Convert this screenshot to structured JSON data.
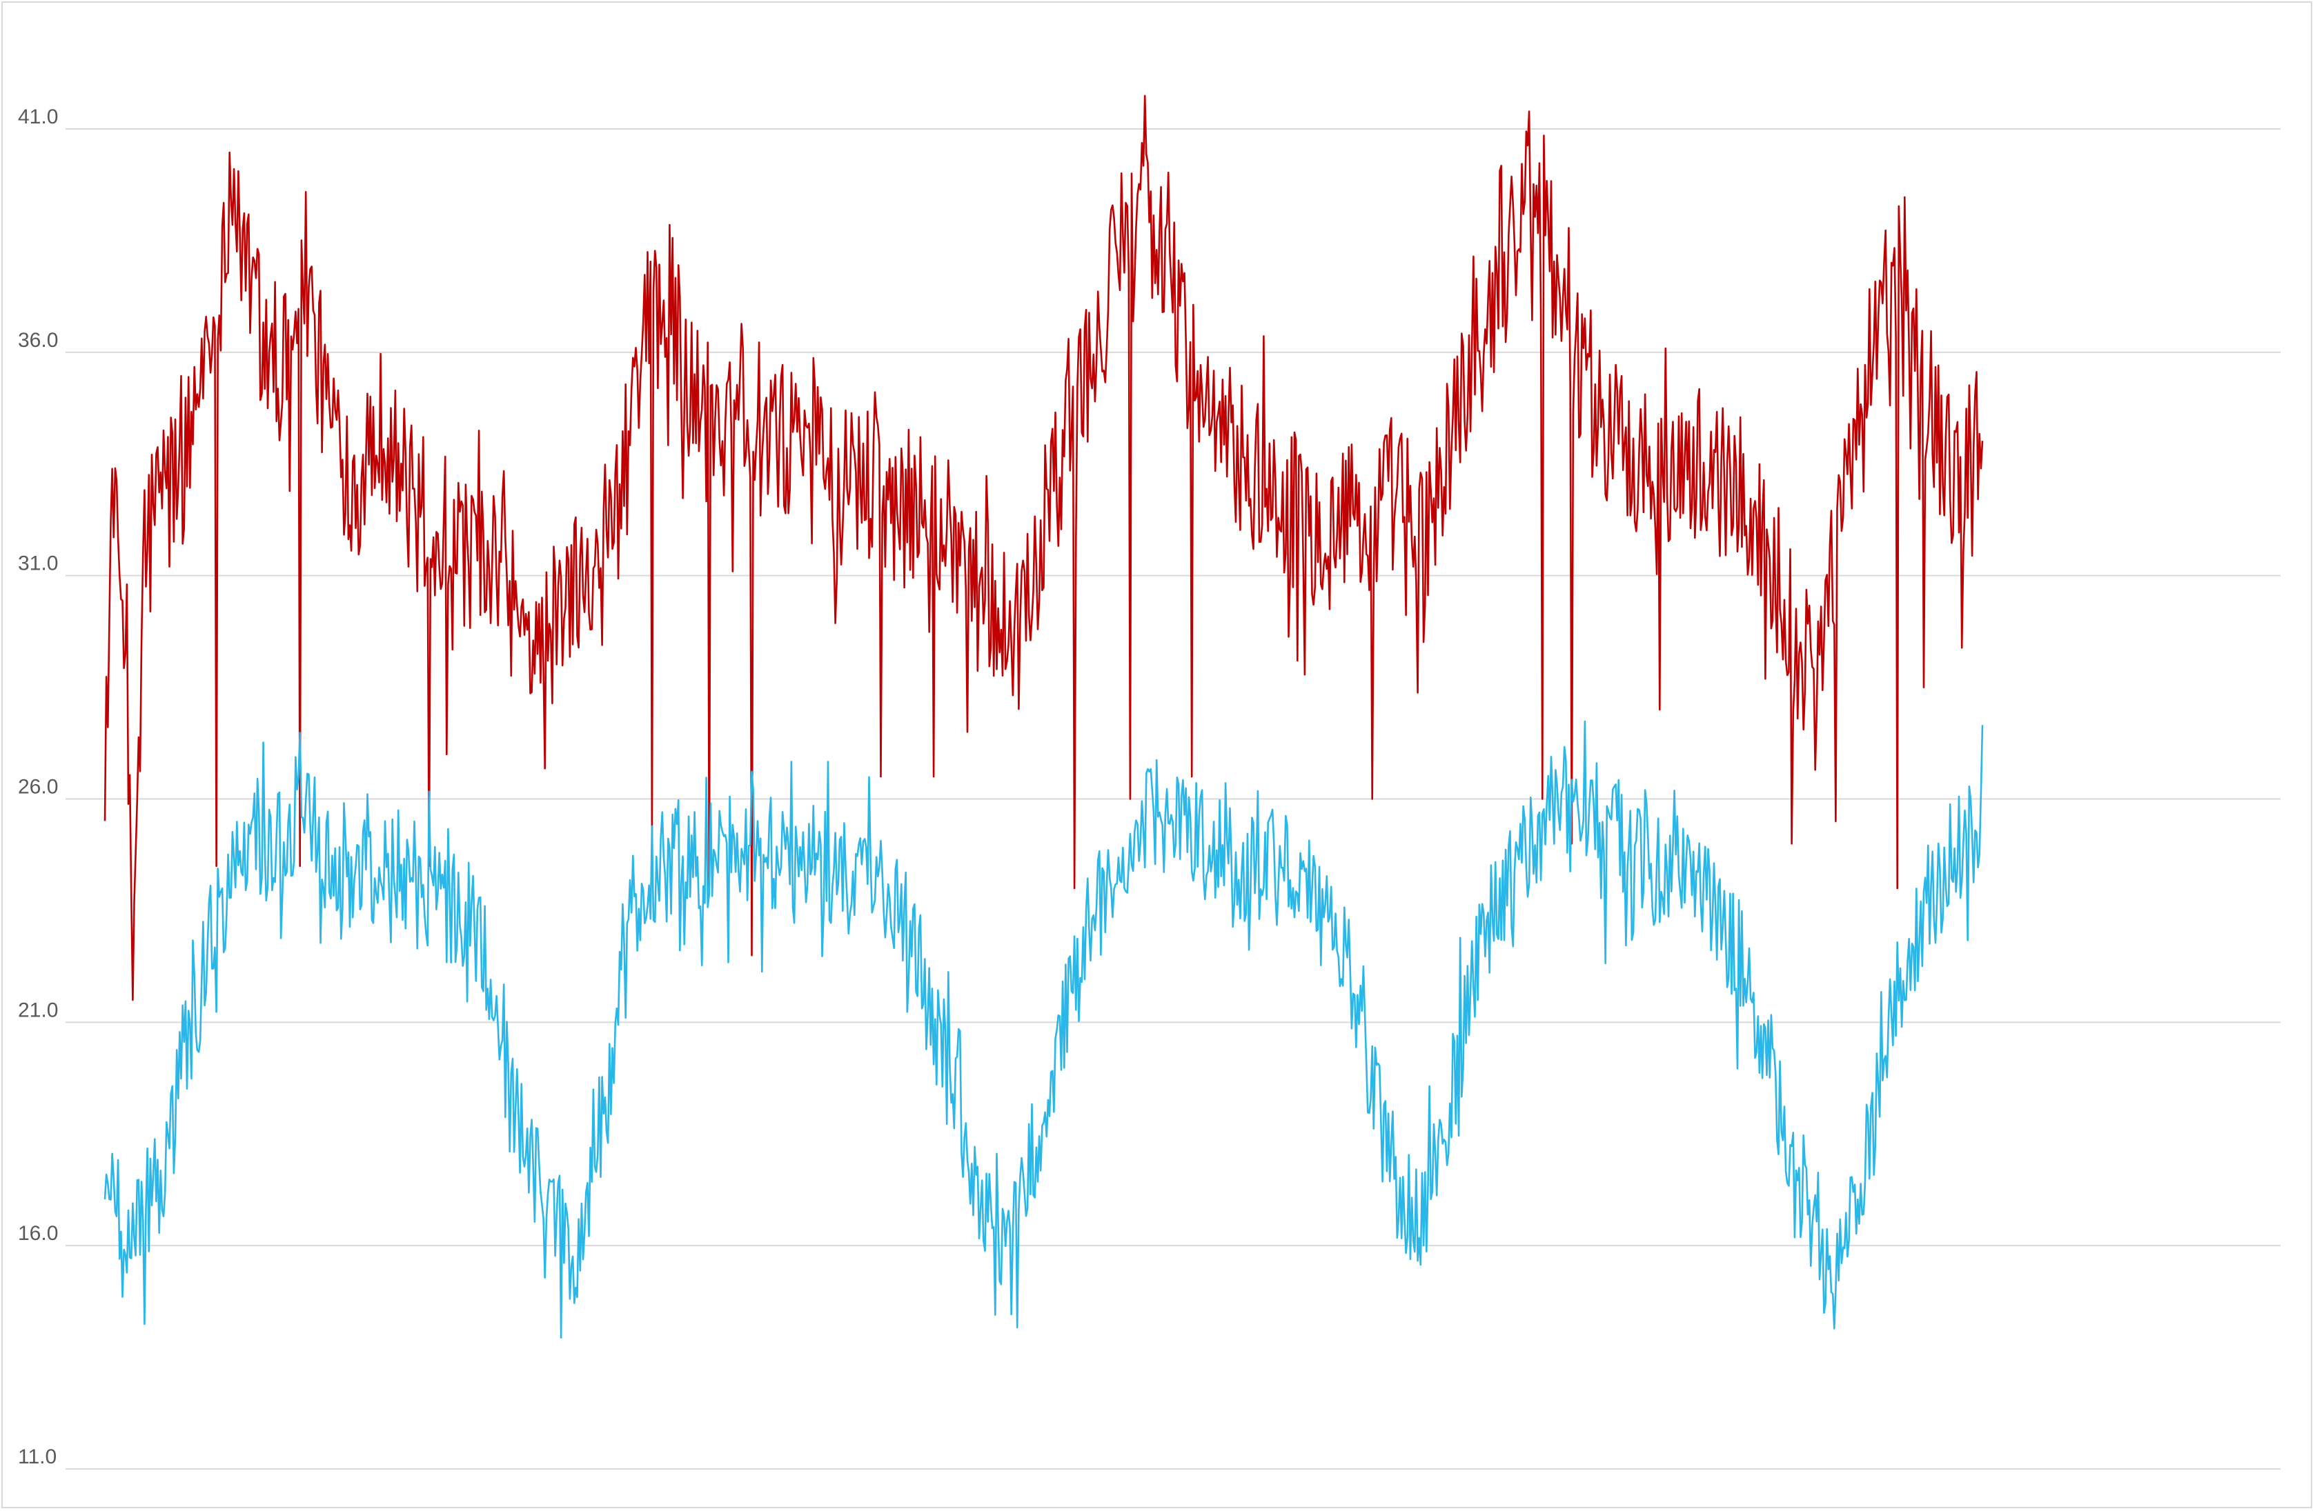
{
  "chart_data": {
    "type": "line",
    "title": "",
    "xlabel": "",
    "ylabel": "",
    "ylim": [
      11.0,
      41.0
    ],
    "yticks": [
      "41.0",
      "36.0",
      "31.0",
      "26.0",
      "21.0",
      "16.0",
      "11.0"
    ],
    "grid": "horizontal",
    "legend": "none",
    "series": [
      {
        "color": "#c00000",
        "anchors": [
          [
            0,
            27.5
          ],
          [
            12,
            32.0
          ],
          [
            28,
            30.0
          ],
          [
            38,
            21.5
          ],
          [
            55,
            32.0
          ],
          [
            80,
            33.0
          ],
          [
            110,
            33.5
          ],
          [
            140,
            36.5
          ],
          [
            170,
            39.5
          ],
          [
            200,
            37.0
          ],
          [
            240,
            35.5
          ],
          [
            270,
            38.0
          ],
          [
            300,
            35.0
          ],
          [
            340,
            33.0
          ],
          [
            380,
            34.5
          ],
          [
            420,
            32.5
          ],
          [
            460,
            32.0
          ],
          [
            500,
            31.5
          ],
          [
            540,
            31.0
          ],
          [
            580,
            29.5
          ],
          [
            620,
            30.0
          ],
          [
            660,
            31.5
          ],
          [
            700,
            32.5
          ],
          [
            740,
            36.5
          ],
          [
            770,
            37.5
          ],
          [
            800,
            35.0
          ],
          [
            840,
            34.5
          ],
          [
            880,
            35.0
          ],
          [
            920,
            34.0
          ],
          [
            960,
            34.5
          ],
          [
            1000,
            33.0
          ],
          [
            1040,
            33.0
          ],
          [
            1080,
            32.5
          ],
          [
            1120,
            32.5
          ],
          [
            1160,
            32.0
          ],
          [
            1200,
            30.5
          ],
          [
            1240,
            30.0
          ],
          [
            1280,
            32.0
          ],
          [
            1320,
            34.5
          ],
          [
            1360,
            36.5
          ],
          [
            1400,
            39.5
          ],
          [
            1440,
            38.5
          ],
          [
            1480,
            35.5
          ],
          [
            1520,
            34.5
          ],
          [
            1560,
            33.5
          ],
          [
            1600,
            33.0
          ],
          [
            1640,
            32.0
          ],
          [
            1680,
            32.5
          ],
          [
            1720,
            32.0
          ],
          [
            1760,
            33.0
          ],
          [
            1800,
            31.5
          ],
          [
            1840,
            34.5
          ],
          [
            1880,
            36.5
          ],
          [
            1920,
            38.5
          ],
          [
            1950,
            40.5
          ],
          [
            1980,
            37.5
          ],
          [
            2020,
            35.0
          ],
          [
            2060,
            34.0
          ],
          [
            2100,
            33.5
          ],
          [
            2140,
            33.5
          ],
          [
            2180,
            33.5
          ],
          [
            2220,
            33.0
          ],
          [
            2260,
            32.0
          ],
          [
            2300,
            30.0
          ],
          [
            2320,
            29.0
          ],
          [
            2350,
            30.5
          ],
          [
            2380,
            34.0
          ],
          [
            2420,
            37.0
          ],
          [
            2460,
            38.0
          ],
          [
            2480,
            35.5
          ],
          [
            2520,
            33.0
          ],
          [
            2560,
            34.0
          ]
        ]
      },
      {
        "color": "#29b6e8",
        "anchors": [
          [
            0,
            17.5
          ],
          [
            15,
            17.0
          ],
          [
            30,
            15.5
          ],
          [
            50,
            17.0
          ],
          [
            80,
            17.5
          ],
          [
            110,
            20.5
          ],
          [
            140,
            22.5
          ],
          [
            170,
            24.0
          ],
          [
            200,
            25.0
          ],
          [
            240,
            25.0
          ],
          [
            270,
            26.0
          ],
          [
            300,
            25.0
          ],
          [
            340,
            24.5
          ],
          [
            380,
            24.5
          ],
          [
            420,
            24.5
          ],
          [
            460,
            23.5
          ],
          [
            500,
            23.5
          ],
          [
            530,
            22.0
          ],
          [
            550,
            19.5
          ],
          [
            580,
            18.0
          ],
          [
            610,
            16.5
          ],
          [
            640,
            15.5
          ],
          [
            660,
            17.0
          ],
          [
            690,
            20.0
          ],
          [
            720,
            23.5
          ],
          [
            760,
            24.5
          ],
          [
            800,
            24.5
          ],
          [
            840,
            24.5
          ],
          [
            880,
            25.0
          ],
          [
            920,
            24.5
          ],
          [
            960,
            24.5
          ],
          [
            1000,
            24.5
          ],
          [
            1040,
            24.0
          ],
          [
            1080,
            23.5
          ],
          [
            1110,
            22.5
          ],
          [
            1140,
            20.5
          ],
          [
            1170,
            18.5
          ],
          [
            1200,
            16.5
          ],
          [
            1230,
            16.0
          ],
          [
            1250,
            17.0
          ],
          [
            1280,
            19.0
          ],
          [
            1310,
            21.0
          ],
          [
            1340,
            23.0
          ],
          [
            1380,
            24.5
          ],
          [
            1420,
            25.5
          ],
          [
            1460,
            25.5
          ],
          [
            1500,
            25.0
          ],
          [
            1540,
            24.5
          ],
          [
            1580,
            24.5
          ],
          [
            1620,
            24.5
          ],
          [
            1660,
            23.5
          ],
          [
            1700,
            22.0
          ],
          [
            1730,
            19.5
          ],
          [
            1760,
            17.5
          ],
          [
            1790,
            16.5
          ],
          [
            1820,
            18.0
          ],
          [
            1850,
            20.5
          ],
          [
            1880,
            23.0
          ],
          [
            1920,
            24.5
          ],
          [
            1960,
            25.5
          ],
          [
            2000,
            26.0
          ],
          [
            2040,
            25.5
          ],
          [
            2080,
            25.0
          ],
          [
            2120,
            24.5
          ],
          [
            2160,
            24.5
          ],
          [
            2200,
            23.5
          ],
          [
            2240,
            22.0
          ],
          [
            2270,
            20.0
          ],
          [
            2300,
            18.0
          ],
          [
            2330,
            16.0
          ],
          [
            2360,
            15.0
          ],
          [
            2390,
            17.0
          ],
          [
            2420,
            19.5
          ],
          [
            2450,
            22.0
          ],
          [
            2480,
            23.5
          ],
          [
            2510,
            24.5
          ],
          [
            2540,
            25.0
          ],
          [
            2560,
            26.0
          ]
        ]
      }
    ],
    "point_count": 2561,
    "noise": [
      1.8,
      1.3
    ],
    "spikes": [
      [
        38,
        21.5
      ],
      [
        152,
        24.5
      ],
      [
        265,
        24.5
      ],
      [
        442,
        24.5
      ],
      [
        466,
        27.0
      ],
      [
        745,
        25.0
      ],
      [
        824,
        24.0
      ],
      [
        882,
        22.5
      ],
      [
        1058,
        26.5
      ],
      [
        1130,
        26.5
      ],
      [
        1175,
        27.5
      ],
      [
        1322,
        24.0
      ],
      [
        1398,
        26.0
      ],
      [
        1482,
        26.5
      ],
      [
        1728,
        26.0
      ],
      [
        1960,
        26.0
      ],
      [
        2000,
        25.0
      ],
      [
        2120,
        28.0
      ],
      [
        2300,
        25.0
      ],
      [
        2360,
        25.5
      ],
      [
        2444,
        24.0
      ],
      [
        2480,
        28.5
      ]
    ]
  }
}
